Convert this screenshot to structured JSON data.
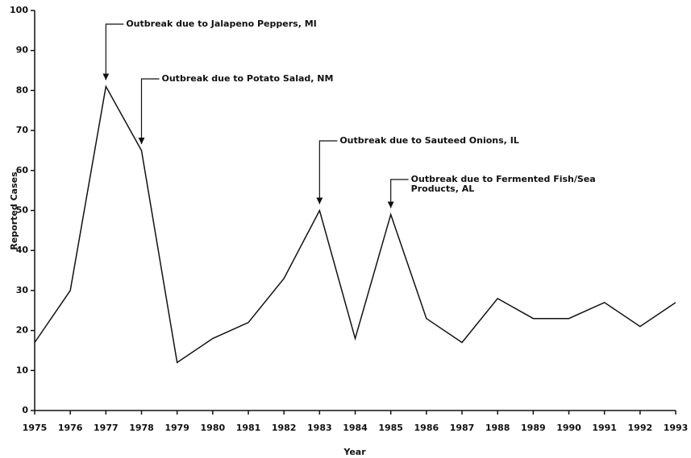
{
  "chart_data": {
    "type": "line",
    "x": [
      1975,
      1976,
      1977,
      1978,
      1979,
      1980,
      1981,
      1982,
      1983,
      1984,
      1985,
      1986,
      1987,
      1988,
      1989,
      1990,
      1991,
      1992,
      1993
    ],
    "series": [
      {
        "color": "#111111",
        "values": [
          17,
          30,
          81,
          65,
          12,
          18,
          22,
          33,
          50,
          18,
          49,
          23,
          17,
          28,
          23,
          23,
          27,
          21,
          27
        ]
      }
    ],
    "xlim": [
      1975,
      1993
    ],
    "xticks": [
      1975,
      1976,
      1977,
      1978,
      1979,
      1980,
      1981,
      1982,
      1983,
      1984,
      1985,
      1986,
      1987,
      1988,
      1989,
      1990,
      1991,
      1992,
      1993
    ],
    "ylim": [
      0,
      100
    ],
    "yticks": [
      0,
      10,
      20,
      30,
      40,
      50,
      60,
      70,
      80,
      90,
      100
    ],
    "xlabel": "Year",
    "ylabel": "Reported Cases",
    "annotations": [
      {
        "x": 1977,
        "lines": [
          "Outbreak due to Jalapeno Peppers, MI"
        ]
      },
      {
        "x": 1978,
        "lines": [
          "Outbreak due to Potato Salad, NM"
        ]
      },
      {
        "x": 1983,
        "lines": [
          "Outbreak due to Sauteed Onions, IL"
        ]
      },
      {
        "x": 1985,
        "lines": [
          "Outbreak due to Fermented Fish/Sea",
          "Products, AL"
        ]
      }
    ]
  }
}
